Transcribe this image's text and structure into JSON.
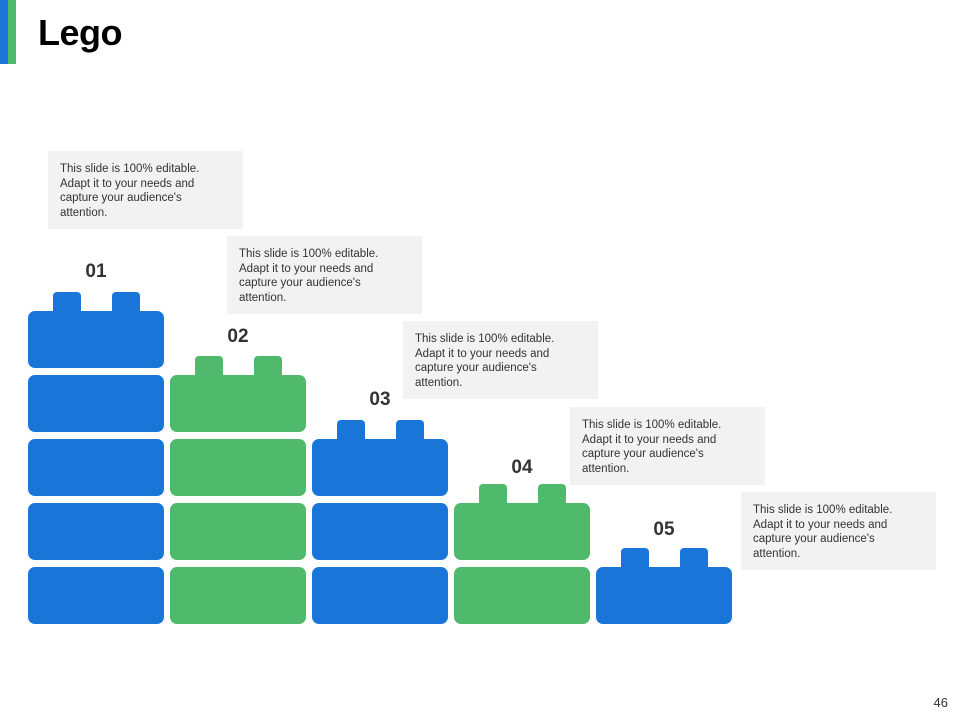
{
  "slide": {
    "title": "Lego",
    "page_number": "46"
  },
  "colors": {
    "blue": "#1976d8",
    "green": "#4fba6b",
    "accent_a": "#1976d8",
    "accent_b": "#4fba6b",
    "text_box_bg": "#f2f2f2"
  },
  "steps": [
    {
      "number": "01",
      "text": "This slide is 100% editable. Adapt it to your needs and capture your audience's attention."
    },
    {
      "number": "02",
      "text": "This slide is 100% editable. Adapt it to your needs and capture your audience's attention."
    },
    {
      "number": "03",
      "text": "This slide is 100% editable. Adapt it to your needs and capture your audience's attention."
    },
    {
      "number": "04",
      "text": "This slide is 100% editable. Adapt it to your needs and capture your audience's attention."
    },
    {
      "number": "05",
      "text": "This slide is 100% editable. Adapt it to your needs and capture your audience's attention."
    }
  ]
}
